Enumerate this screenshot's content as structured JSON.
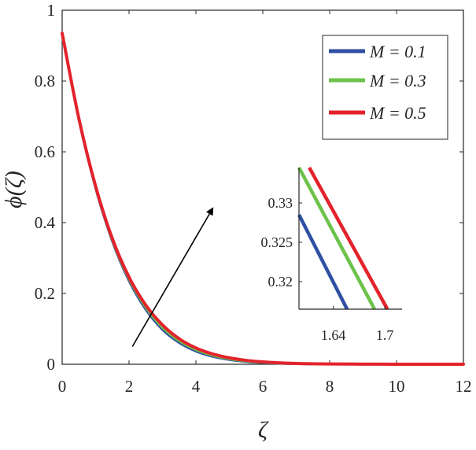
{
  "chart_data": {
    "type": "line",
    "title": "",
    "xlabel": "ζ",
    "ylabel": "ϕ(ζ)",
    "xlim": [
      0,
      12
    ],
    "ylim": [
      0,
      1
    ],
    "xticks": [
      "0",
      "2",
      "4",
      "6",
      "8",
      "10",
      "12"
    ],
    "yticks": [
      "0",
      "0.2",
      "0.4",
      "0.6",
      "0.8",
      "1"
    ],
    "grid": false,
    "legend_position": "top-right",
    "series": [
      {
        "name": "M = 0.1",
        "color": "#2e4fa3",
        "x": [
          0,
          0.5,
          1,
          1.5,
          2,
          2.5,
          3,
          3.5,
          4,
          4.5,
          5,
          5.5,
          6,
          6.5,
          7,
          7.5,
          8,
          9,
          10,
          11,
          12
        ],
        "y": [
          0.935,
          0.692,
          0.498,
          0.348,
          0.236,
          0.155,
          0.098,
          0.061,
          0.037,
          0.022,
          0.013,
          0.0075,
          0.0043,
          0.0025,
          0.0014,
          0.0008,
          0.0005,
          0.0002,
          0.0001,
          0,
          0
        ]
      },
      {
        "name": "M = 0.3",
        "color": "#6cc24a",
        "x": [
          0,
          0.5,
          1,
          1.5,
          2,
          2.5,
          3,
          3.5,
          4,
          4.5,
          5,
          5.5,
          6,
          6.5,
          7,
          7.5,
          8,
          9,
          10,
          11,
          12
        ],
        "y": [
          0.935,
          0.693,
          0.5,
          0.351,
          0.241,
          0.161,
          0.104,
          0.066,
          0.041,
          0.025,
          0.015,
          0.0089,
          0.0052,
          0.003,
          0.0017,
          0.001,
          0.0006,
          0.0002,
          0.0001,
          0,
          0
        ]
      },
      {
        "name": "M = 0.5",
        "color": "#e3232c",
        "x": [
          0,
          0.5,
          1,
          1.5,
          2,
          2.5,
          3,
          3.5,
          4,
          4.5,
          5,
          5.5,
          6,
          6.5,
          7,
          7.5,
          8,
          9,
          10,
          11,
          12
        ],
        "y": [
          0.935,
          0.694,
          0.503,
          0.355,
          0.246,
          0.167,
          0.111,
          0.072,
          0.046,
          0.029,
          0.018,
          0.011,
          0.0066,
          0.0039,
          0.0023,
          0.0013,
          0.0008,
          0.0003,
          0.0001,
          0,
          0
        ]
      }
    ],
    "annotation": {
      "type": "arrow",
      "from": [
        2.1,
        0.05
      ],
      "to": [
        4.5,
        0.44
      ],
      "meaning": "increasing M"
    },
    "inset": {
      "xlim": [
        1.6,
        1.72
      ],
      "ylim": [
        0.3165,
        0.3345
      ],
      "xticks": [
        "1.64",
        "1.7"
      ],
      "yticks": [
        "0.32",
        "0.325",
        "0.33"
      ],
      "series": [
        {
          "name": "M = 0.1",
          "color": "#2e4fa3",
          "x": [
            1.6,
            1.656
          ],
          "y": [
            0.3285,
            0.3165
          ]
        },
        {
          "name": "M = 0.3",
          "color": "#6cc24a",
          "x": [
            1.6,
            1.688
          ],
          "y": [
            0.3345,
            0.3165
          ]
        },
        {
          "name": "M = 0.5",
          "color": "#e3232c",
          "x": [
            1.612,
            1.703
          ],
          "y": [
            0.3345,
            0.3165
          ]
        }
      ]
    }
  }
}
